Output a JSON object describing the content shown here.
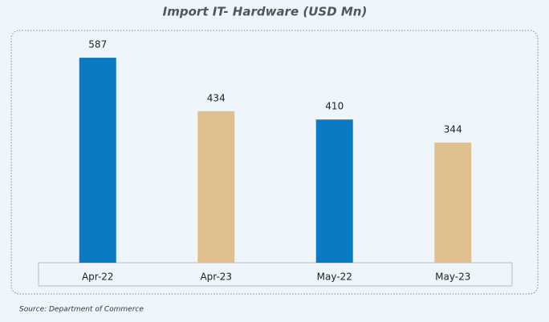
{
  "chart_data": {
    "type": "bar",
    "title": "Import IT- Hardware (USD Mn)",
    "categories": [
      "Apr-22",
      "Apr-23",
      "May-22",
      "May-23"
    ],
    "values": [
      587,
      434,
      410,
      344
    ],
    "colors": [
      "#0a7bc2",
      "#dfc08e",
      "#0a7bc2",
      "#dfc08e"
    ],
    "source": "Source: Department of Commerce"
  }
}
